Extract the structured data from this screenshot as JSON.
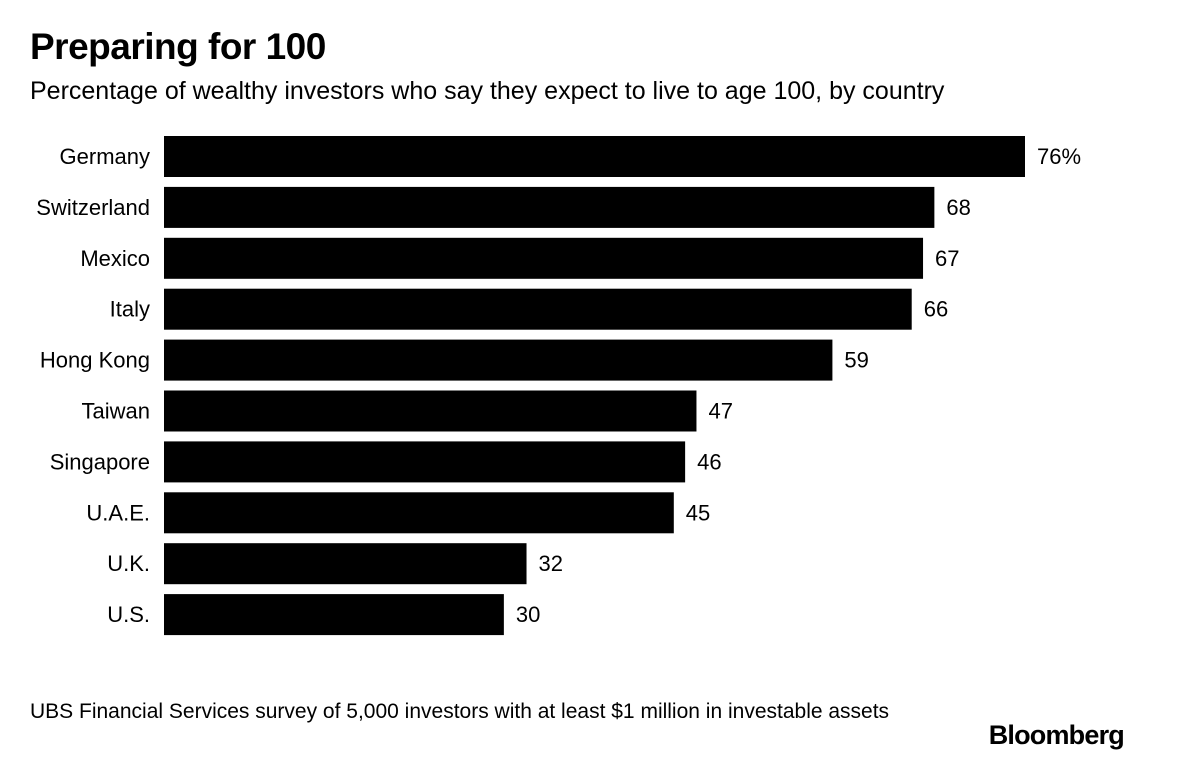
{
  "chart_data": {
    "type": "bar",
    "orientation": "horizontal",
    "title": "Preparing for 100",
    "subtitle": "Percentage of wealthy investors who say they expect to live to age 100, by country",
    "categories": [
      "Germany",
      "Switzerland",
      "Mexico",
      "Italy",
      "Hong Kong",
      "Taiwan",
      "Singapore",
      "U.A.E.",
      "U.K.",
      "U.S."
    ],
    "values": [
      76,
      68,
      67,
      66,
      59,
      47,
      46,
      45,
      32,
      30
    ],
    "value_labels": [
      "76%",
      "68",
      "67",
      "66",
      "59",
      "47",
      "46",
      "45",
      "32",
      "30"
    ],
    "xlim": [
      0,
      76
    ],
    "bar_color": "#000000",
    "grid": false
  },
  "footnote": "UBS Financial Services survey of 5,000 investors with at least $1 million in investable assets",
  "brand": "Bloomberg"
}
